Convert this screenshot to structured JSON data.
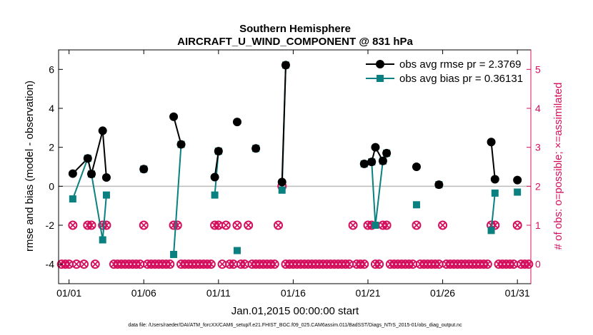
{
  "chart_data": {
    "type": "line",
    "title": "Southern Hemisphere",
    "subtitle": "AIRCRAFT_U_WIND_COMPONENT @ 831 hPa",
    "xlabel": "Jan.01,2015 00:00:00 start",
    "ylabel": "rmse and bias (model - observation)",
    "y2label": "# of obs: o=possible; ×=assimilated",
    "footnote": "data file: /Users/raeder/DAI/ATM_forcXX/CAM6_setup/f.e21.FHIST_BGC.f09_025.CAM6assim.011/BadSST/Diags_NTrS_2015-01/obs_diag_output.nc",
    "xlim": [
      0.3,
      31.9
    ],
    "ylim": [
      -5,
      7
    ],
    "y2lim": [
      -0.5,
      5.5
    ],
    "x_ticks": [
      1,
      6,
      11,
      16,
      21,
      26,
      31
    ],
    "x_tick_labels": [
      "01/01",
      "01/06",
      "01/11",
      "01/16",
      "01/21",
      "01/26",
      "01/31"
    ],
    "y_ticks": [
      -4,
      -2,
      0,
      2,
      4,
      6
    ],
    "y2_ticks": [
      0,
      1,
      2,
      3,
      4,
      5
    ],
    "zero_line": 0,
    "legend_position": "top-right",
    "colors": {
      "rmse": "#000000",
      "bias": "#0b8080",
      "counts": "#d4105e",
      "zero": "#bbbbbb"
    },
    "series": [
      {
        "name": "obs avg rmse pr = 2.3769",
        "marker": "circle",
        "x": [
          1.25,
          2.25,
          2.5,
          3.25,
          3.5,
          3.75,
          4.0,
          6.0,
          6.5,
          6.75,
          7.25,
          8.0,
          8.5,
          8.75,
          9.75,
          10.0,
          10.25,
          10.5,
          10.75,
          11.0,
          11.25,
          12.25,
          12.75,
          13.5,
          14.0,
          14.5,
          15.25,
          15.5,
          15.75,
          16.0,
          17.75,
          19.0,
          20.75,
          21.0,
          21.25,
          21.5,
          22.0,
          22.25,
          22.75,
          23.0,
          24.25,
          24.5,
          25.75,
          26.0,
          27.75,
          28.25,
          29.25,
          29.5,
          29.75,
          30.0,
          31.0,
          31.25
        ],
        "y": [
          0.65,
          1.43,
          0.63,
          2.85,
          0.45,
          null,
          null,
          0.88,
          null,
          null,
          null,
          3.57,
          2.15,
          null,
          null,
          null,
          null,
          null,
          0.47,
          1.8,
          null,
          3.3,
          null,
          1.94,
          null,
          null,
          0.22,
          6.22,
          null,
          null,
          null,
          null,
          1.15,
          null,
          1.25,
          2.0,
          1.3,
          1.7,
          null,
          null,
          1.0,
          null,
          0.08,
          null,
          null,
          null,
          2.27,
          0.36,
          null,
          null,
          0.32,
          null
        ]
      },
      {
        "name": "obs avg bias pr = 0.36131",
        "marker": "square",
        "x": [
          1.25,
          2.25,
          2.5,
          3.25,
          3.5,
          3.75,
          4.0,
          6.0,
          6.5,
          6.75,
          7.25,
          8.0,
          8.5,
          8.75,
          9.75,
          10.0,
          10.25,
          10.5,
          10.75,
          11.0,
          11.25,
          12.25,
          12.75,
          13.5,
          14.0,
          14.5,
          15.25,
          15.5,
          15.75,
          16.0,
          17.75,
          19.0,
          20.75,
          21.0,
          21.25,
          21.5,
          22.0,
          22.25,
          22.75,
          23.0,
          24.25,
          24.5,
          25.75,
          26.0,
          27.75,
          28.25,
          29.25,
          29.5,
          29.75,
          30.0,
          31.0,
          31.25
        ],
        "y": [
          -0.65,
          1.43,
          0.63,
          -2.75,
          -0.45,
          null,
          null,
          0.88,
          null,
          null,
          null,
          -3.5,
          2.15,
          null,
          null,
          null,
          null,
          null,
          -0.45,
          1.8,
          null,
          -3.3,
          null,
          1.94,
          null,
          null,
          -0.2,
          6.22,
          null,
          null,
          null,
          null,
          1.15,
          null,
          1.25,
          -2.0,
          1.3,
          1.7,
          null,
          null,
          -0.95,
          null,
          0.08,
          null,
          null,
          null,
          -2.27,
          -0.35,
          null,
          null,
          -0.3,
          null
        ]
      },
      {
        "name": "obs possible (o)",
        "axis": "right",
        "marker": "circle-open",
        "x": [
          0.5,
          0.75,
          1.0,
          1.25,
          1.5,
          2.0,
          2.25,
          2.5,
          2.75,
          3.25,
          3.5,
          4.0,
          4.25,
          4.5,
          4.75,
          5.0,
          5.25,
          5.5,
          5.75,
          6.0,
          6.25,
          6.5,
          6.75,
          7.0,
          7.25,
          7.5,
          7.75,
          8.0,
          8.25,
          8.5,
          8.75,
          9.0,
          9.25,
          9.5,
          9.75,
          10.0,
          10.25,
          10.5,
          10.75,
          11.0,
          11.25,
          11.5,
          11.75,
          12.0,
          12.25,
          12.5,
          12.75,
          13.0,
          13.25,
          13.5,
          13.75,
          14.0,
          14.25,
          14.5,
          14.75,
          15.0,
          15.25,
          15.5,
          15.75,
          16.0,
          16.25,
          16.5,
          16.75,
          17.0,
          17.25,
          17.5,
          17.75,
          18.0,
          18.25,
          18.5,
          18.75,
          19.0,
          19.25,
          19.5,
          19.75,
          20.0,
          20.25,
          20.5,
          20.75,
          21.0,
          21.25,
          21.5,
          21.75,
          22.0,
          22.25,
          22.5,
          22.75,
          23.0,
          23.25,
          23.5,
          23.75,
          24.0,
          24.25,
          24.5,
          24.75,
          25.0,
          25.25,
          25.5,
          25.75,
          26.0,
          26.25,
          26.5,
          26.75,
          27.0,
          27.25,
          27.5,
          27.75,
          28.0,
          28.25,
          28.5,
          28.75,
          29.0,
          29.25,
          29.5,
          29.75,
          30.0,
          30.25,
          30.5,
          30.75,
          31.0,
          31.25,
          31.5,
          31.75
        ],
        "y": [
          0,
          0,
          0,
          1,
          0,
          0,
          1,
          1,
          0,
          1,
          1,
          0,
          0,
          0,
          0,
          0,
          0,
          0,
          0,
          1,
          0,
          0,
          0,
          0,
          0,
          0,
          0,
          1,
          1,
          0,
          0,
          0,
          0,
          0,
          0,
          0,
          0,
          0,
          1,
          1,
          0,
          1,
          0,
          0,
          1,
          0,
          0,
          1,
          0,
          0,
          0,
          0,
          0,
          0,
          0,
          1,
          2,
          0,
          0,
          0,
          0,
          0,
          0,
          0,
          0,
          0,
          0,
          0,
          0,
          0,
          0,
          0,
          0,
          0,
          0,
          1,
          0,
          0,
          0,
          1,
          1,
          0,
          0,
          1,
          1,
          0,
          0,
          0,
          0,
          0,
          0,
          0,
          1,
          0,
          0,
          0,
          0,
          0,
          0,
          1,
          0,
          0,
          0,
          0,
          0,
          0,
          0,
          0,
          0,
          0,
          0,
          0,
          1,
          1,
          0,
          0,
          0,
          0,
          0,
          1,
          0,
          0,
          0
        ]
      }
    ]
  }
}
